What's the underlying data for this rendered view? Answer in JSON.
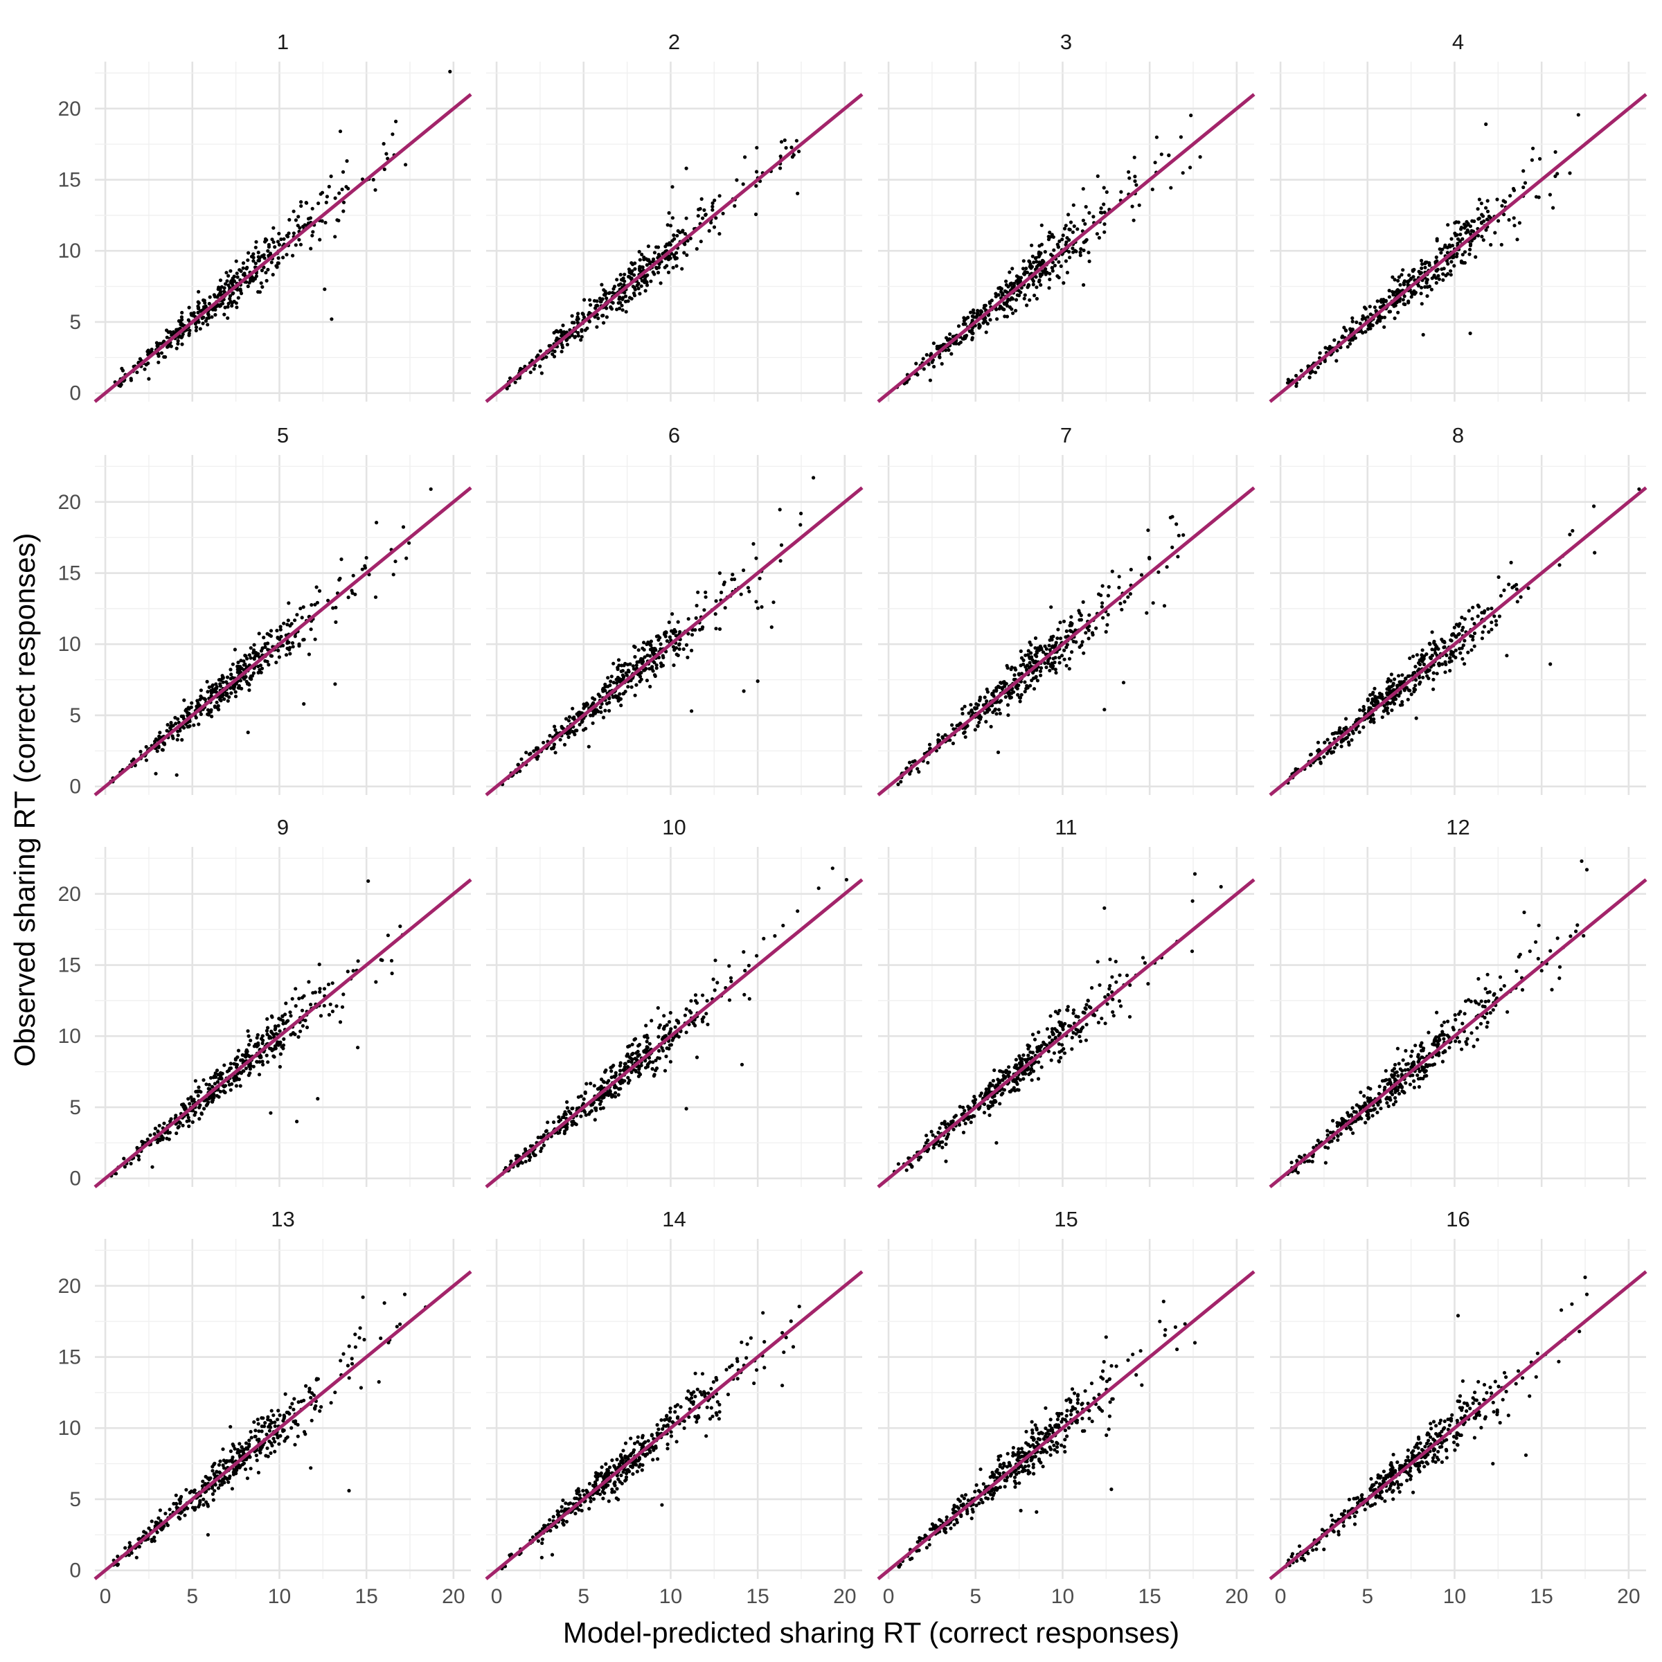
{
  "chart_data": {
    "type": "scatter",
    "layout": "facet-grid-4x4",
    "xlabel": "Model-predicted sharing RT (correct responses)",
    "ylabel": "Observed sharing RT (correct responses)",
    "xlim": [
      -0.6,
      21.0
    ],
    "ylim": [
      -0.6,
      23.3
    ],
    "xticks": [
      0,
      5,
      10,
      15,
      20
    ],
    "yticks": [
      0,
      5,
      10,
      15,
      20
    ],
    "grid": true,
    "reference_line": {
      "intercept": 0,
      "slope": 1,
      "color": "#A3246A"
    },
    "point_color": "#000000",
    "panels": [
      {
        "label": "1",
        "outliers": [
          [
            19.8,
            22.6
          ],
          [
            13.5,
            18.4
          ],
          [
            16.5,
            18.2
          ],
          [
            12.6,
            7.3
          ],
          [
            13.0,
            5.2
          ],
          [
            15.4,
            15.0
          ],
          [
            2.5,
            1.0
          ]
        ]
      },
      {
        "label": "2",
        "outliers": [
          [
            17.0,
            16.6
          ],
          [
            10.1,
            14.5
          ],
          [
            10.9,
            15.8
          ],
          [
            2.6,
            1.4
          ],
          [
            12.8,
            11.2
          ]
        ]
      },
      {
        "label": "3",
        "outliers": [
          [
            16.8,
            18.0
          ],
          [
            8.8,
            11.8
          ],
          [
            11.2,
            7.6
          ],
          [
            2.4,
            0.9
          ],
          [
            17.9,
            16.6
          ]
        ]
      },
      {
        "label": "4",
        "outliers": [
          [
            11.8,
            18.9
          ],
          [
            13.6,
            10.8
          ],
          [
            10.9,
            4.2
          ],
          [
            8.2,
            4.1
          ],
          [
            14.5,
            17.2
          ]
        ]
      },
      {
        "label": "5",
        "outliers": [
          [
            18.7,
            20.9
          ],
          [
            13.2,
            7.2
          ],
          [
            11.4,
            5.8
          ],
          [
            4.1,
            0.8
          ],
          [
            8.2,
            3.8
          ],
          [
            2.9,
            0.9
          ]
        ]
      },
      {
        "label": "6",
        "outliers": [
          [
            18.2,
            21.7
          ],
          [
            15.0,
            7.4
          ],
          [
            14.2,
            6.7
          ],
          [
            11.2,
            5.3
          ],
          [
            5.3,
            2.8
          ],
          [
            15.8,
            11.2
          ]
        ]
      },
      {
        "label": "7",
        "outliers": [
          [
            16.2,
            18.9
          ],
          [
            12.4,
            5.4
          ],
          [
            6.3,
            2.4
          ],
          [
            13.5,
            7.3
          ],
          [
            15.2,
            12.9
          ]
        ]
      },
      {
        "label": "8",
        "outliers": [
          [
            20.6,
            20.9
          ],
          [
            15.5,
            8.6
          ],
          [
            18.0,
            19.7
          ],
          [
            13.0,
            9.2
          ],
          [
            7.8,
            4.8
          ]
        ]
      },
      {
        "label": "9",
        "outliers": [
          [
            15.1,
            20.9
          ],
          [
            14.5,
            9.2
          ],
          [
            12.2,
            5.6
          ],
          [
            9.5,
            4.6
          ],
          [
            11.0,
            4.0
          ],
          [
            2.7,
            0.8
          ]
        ]
      },
      {
        "label": "10",
        "outliers": [
          [
            19.3,
            21.8
          ],
          [
            20.1,
            21.0
          ],
          [
            14.1,
            8.0
          ],
          [
            10.9,
            4.9
          ],
          [
            18.5,
            20.4
          ]
        ]
      },
      {
        "label": "11",
        "outliers": [
          [
            17.6,
            21.4
          ],
          [
            19.1,
            20.5
          ],
          [
            6.2,
            2.5
          ],
          [
            3.3,
            1.2
          ],
          [
            12.4,
            19.0
          ]
        ]
      },
      {
        "label": "12",
        "outliers": [
          [
            17.3,
            22.3
          ],
          [
            17.6,
            21.7
          ],
          [
            2.6,
            1.1
          ],
          [
            15.0,
            14.6
          ],
          [
            14.0,
            18.7
          ]
        ]
      },
      {
        "label": "13",
        "outliers": [
          [
            14.8,
            19.2
          ],
          [
            17.2,
            19.4
          ],
          [
            18.4,
            18.5
          ],
          [
            14.0,
            5.6
          ],
          [
            11.8,
            7.2
          ],
          [
            5.9,
            2.5
          ],
          [
            1.8,
            0.9
          ]
        ]
      },
      {
        "label": "14",
        "outliers": [
          [
            15.3,
            18.1
          ],
          [
            9.5,
            4.6
          ],
          [
            2.6,
            0.9
          ],
          [
            14.4,
            15.9
          ],
          [
            3.2,
            1.1
          ]
        ]
      },
      {
        "label": "15",
        "outliers": [
          [
            15.8,
            18.9
          ],
          [
            17.6,
            16.0
          ],
          [
            12.8,
            5.7
          ],
          [
            7.6,
            4.2
          ],
          [
            8.5,
            4.1
          ],
          [
            12.5,
            16.4
          ]
        ]
      },
      {
        "label": "16",
        "outliers": [
          [
            17.5,
            20.6
          ],
          [
            14.1,
            8.1
          ],
          [
            12.2,
            7.5
          ],
          [
            17.6,
            19.4
          ],
          [
            10.2,
            17.9
          ],
          [
            3.6,
            3.4
          ]
        ]
      }
    ]
  }
}
